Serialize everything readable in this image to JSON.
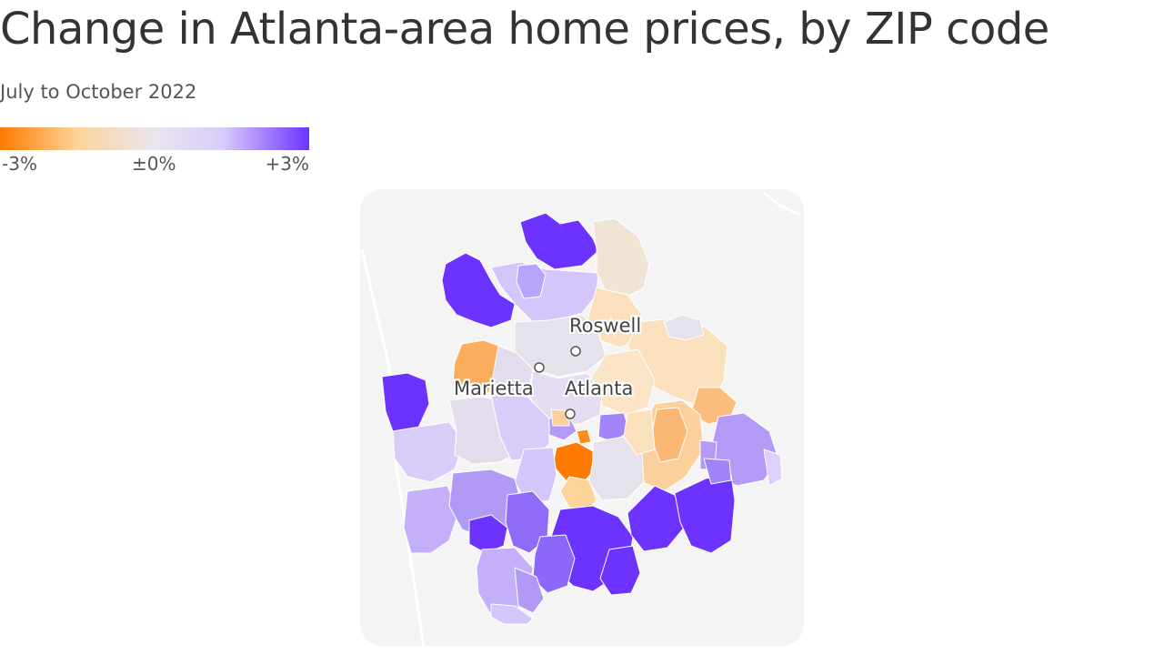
{
  "title": "Change in Atlanta-area home prices, by ZIP code",
  "subtitle": "July to October 2022",
  "legend": {
    "min_label": "-3%",
    "mid_label": "±0%",
    "max_label": "+3%",
    "colors": [
      "#ff7a00",
      "#fbd49a",
      "#e9e4f0",
      "#d9ccf9",
      "#6c33ff"
    ]
  },
  "map": {
    "background_color": "#f4f4f4",
    "cities": [
      {
        "name": "Roswell"
      },
      {
        "name": "Marietta"
      },
      {
        "name": "Atlanta"
      }
    ]
  }
}
